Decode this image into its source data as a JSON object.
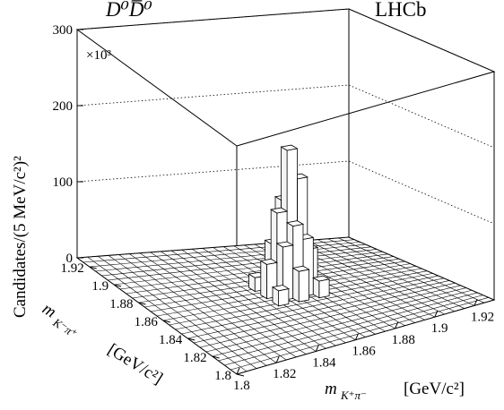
{
  "chart_data": {
    "type": "lego3d",
    "title_left": "D⁰D̅⁰",
    "title_right": "LHCb",
    "zlabel": "Candidates/(5 MeV/c²)²",
    "zmultiplier": "×10³",
    "zticks": [
      "0",
      "100",
      "200",
      "300"
    ],
    "zlim": [
      0,
      300
    ],
    "xlabel_sym": "m",
    "xlabel_sub": "K⁺π⁻",
    "xlabel_unit": "[GeV/c²]",
    "ylabel_sym": "m",
    "ylabel_sub": "K⁻π⁺",
    "ylabel_unit": "[GeV/c²]",
    "xlim": [
      1.8,
      1.93
    ],
    "ylim": [
      1.8,
      1.93
    ],
    "xticks": [
      "1.8",
      "1.82",
      "1.84",
      "1.86",
      "1.88",
      "1.9",
      "1.92"
    ],
    "yticks": [
      "1.8",
      "1.82",
      "1.84",
      "1.86",
      "1.88",
      "1.9",
      "1.92"
    ],
    "peak": {
      "x": 1.865,
      "y": 1.865,
      "z": 190
    },
    "towers": [
      {
        "x": 1.865,
        "y": 1.865,
        "z": 190
      },
      {
        "x": 1.87,
        "y": 1.865,
        "z": 150
      },
      {
        "x": 1.86,
        "y": 1.865,
        "z": 110
      },
      {
        "x": 1.865,
        "y": 1.87,
        "z": 120
      },
      {
        "x": 1.865,
        "y": 1.86,
        "z": 95
      },
      {
        "x": 1.87,
        "y": 1.87,
        "z": 85
      },
      {
        "x": 1.86,
        "y": 1.86,
        "z": 70
      },
      {
        "x": 1.87,
        "y": 1.86,
        "z": 75
      },
      {
        "x": 1.86,
        "y": 1.87,
        "z": 65
      },
      {
        "x": 1.875,
        "y": 1.865,
        "z": 55
      },
      {
        "x": 1.855,
        "y": 1.865,
        "z": 45
      },
      {
        "x": 1.865,
        "y": 1.875,
        "z": 50
      },
      {
        "x": 1.865,
        "y": 1.855,
        "z": 40
      },
      {
        "x": 1.875,
        "y": 1.875,
        "z": 25
      },
      {
        "x": 1.855,
        "y": 1.855,
        "z": 20
      },
      {
        "x": 1.875,
        "y": 1.855,
        "z": 22
      },
      {
        "x": 1.855,
        "y": 1.875,
        "z": 18
      }
    ],
    "grid": true
  }
}
